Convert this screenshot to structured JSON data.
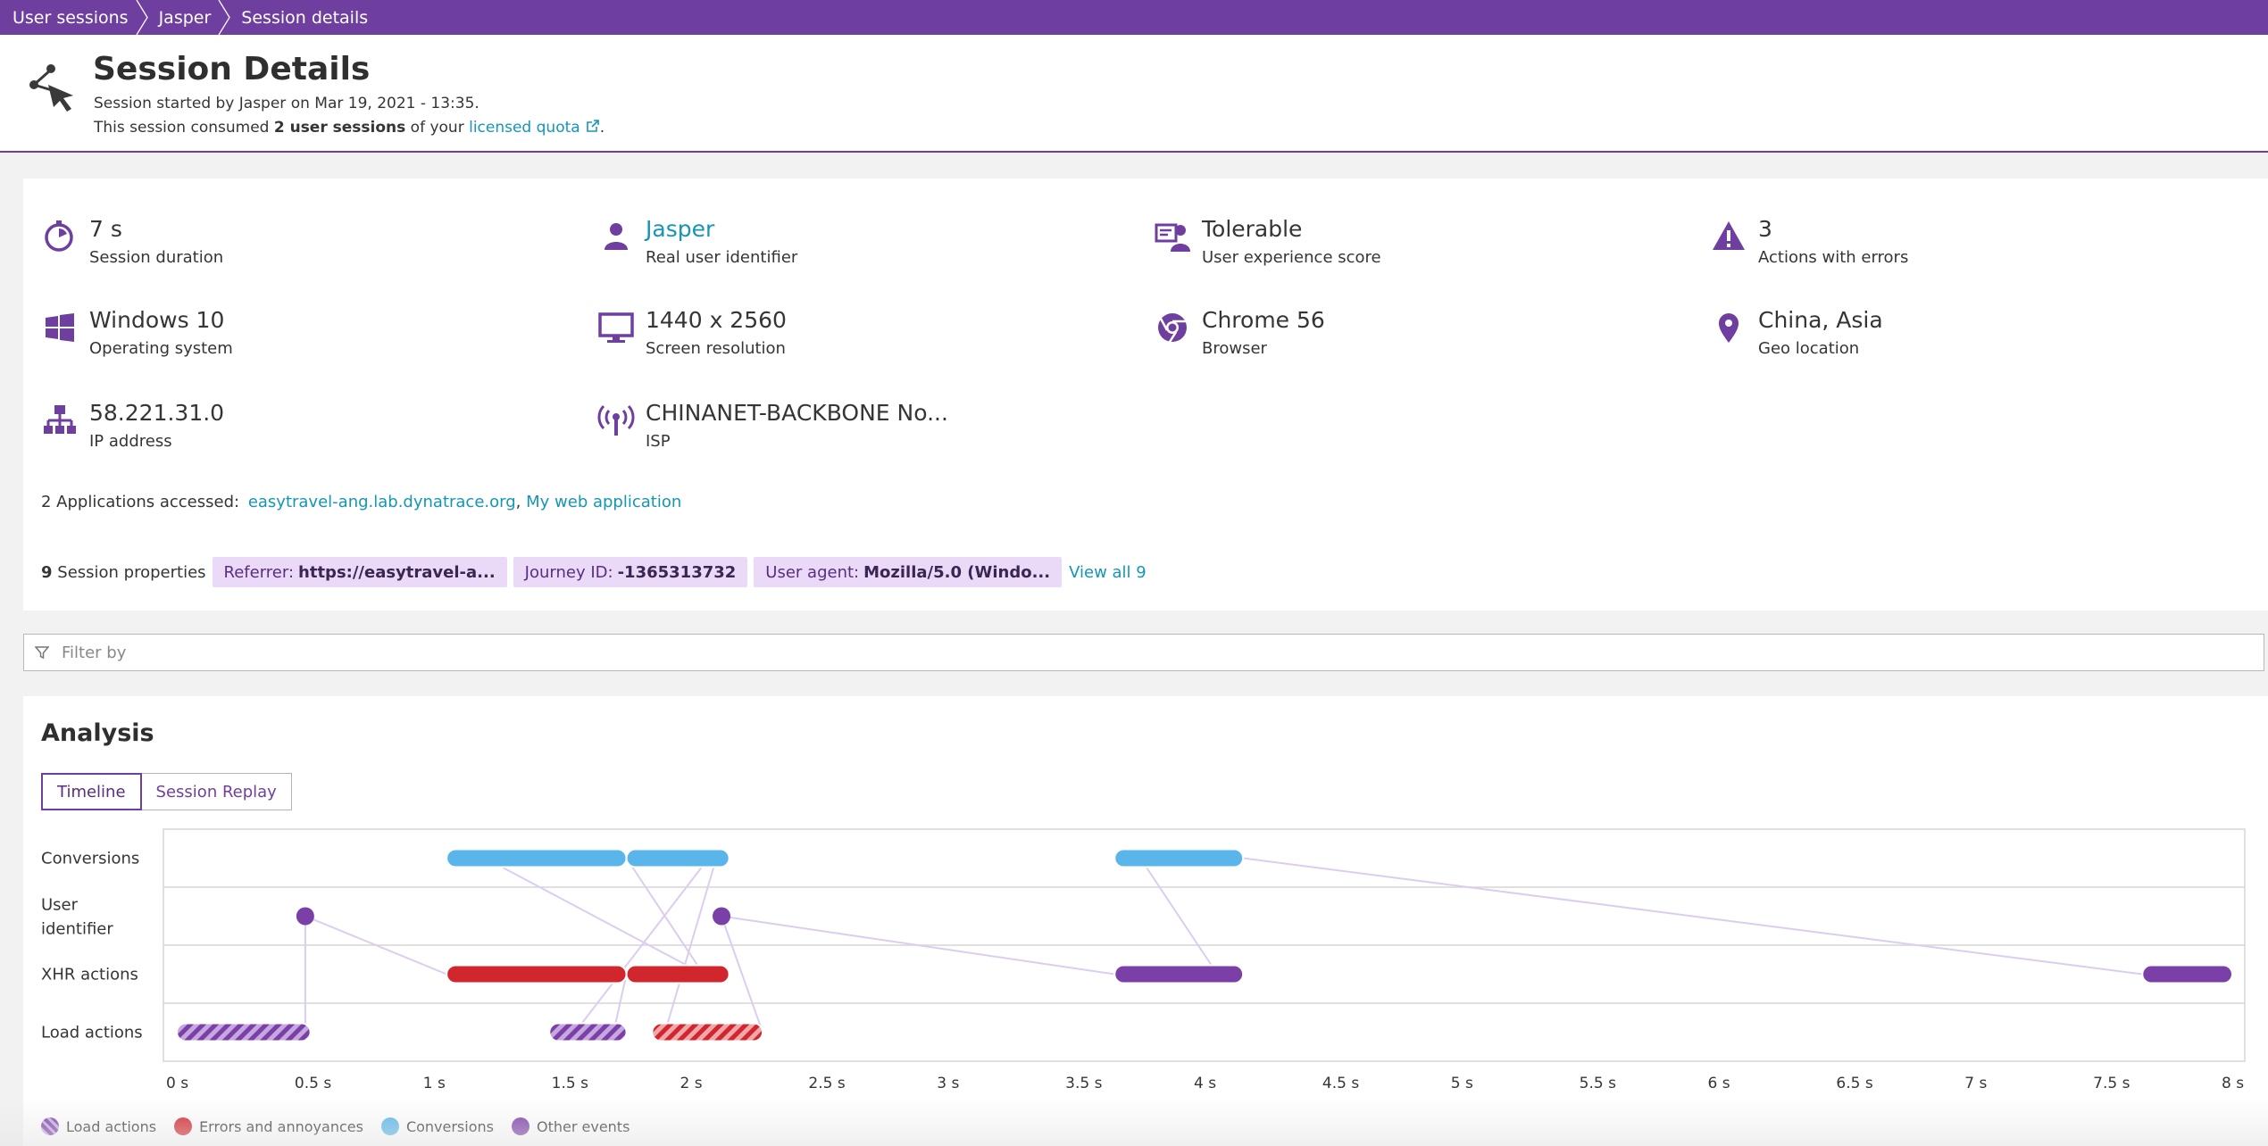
{
  "breadcrumb": [
    {
      "label": "User sessions"
    },
    {
      "label": "Jasper"
    },
    {
      "label": "Session details"
    }
  ],
  "header": {
    "title": "Session Details",
    "started_text": "Session started by Jasper on Mar 19, 2021 - 13:35.",
    "consumed_prefix": "This session consumed ",
    "consumed_bold": "2 user sessions",
    "consumed_middle": " of your ",
    "quota_link": "licensed quota",
    "consumed_suffix": "."
  },
  "stats": [
    {
      "icon": "stopwatch-icon",
      "value": "7 s",
      "label": "Session duration"
    },
    {
      "icon": "user-icon",
      "value": "Jasper",
      "label": "Real user identifier"
    },
    {
      "icon": "user-experience-icon",
      "value": "Tolerable",
      "label": "User experience score"
    },
    {
      "icon": "warning-icon",
      "value": "3",
      "label": "Actions with errors"
    },
    {
      "icon": "windows-icon",
      "value": "Windows 10",
      "label": "Operating system"
    },
    {
      "icon": "monitor-icon",
      "value": "1440 x 2560",
      "label": "Screen resolution"
    },
    {
      "icon": "chrome-icon",
      "value": "Chrome 56",
      "label": "Browser"
    },
    {
      "icon": "location-pin-icon",
      "value": "China, Asia",
      "label": "Geo location"
    },
    {
      "icon": "network-icon",
      "value": "58.221.31.0",
      "label": "IP address"
    },
    {
      "icon": "antenna-icon",
      "value": "CHINANET-BACKBONE No...",
      "label": "ISP"
    }
  ],
  "applications": {
    "prefix": "2 Applications accessed:",
    "app1": "easytravel-ang.lab.dynatrace.org",
    "separator": ",",
    "app2": "My web application"
  },
  "properties": {
    "count": "9",
    "label": "Session properties",
    "tags": [
      {
        "key": "Referrer:",
        "value": "https://easytravel-a..."
      },
      {
        "key": "Journey ID:",
        "value": "-1365313732"
      },
      {
        "key": "User agent:",
        "value": "Mozilla/5.0 (Windo..."
      }
    ],
    "view_all": "View all 9"
  },
  "filter": {
    "placeholder": "Filter by"
  },
  "analysis": {
    "title": "Analysis",
    "tabs": [
      "Timeline",
      "Session Replay"
    ],
    "active_tab": "Timeline"
  },
  "colors": {
    "purple": "#6f3fa0",
    "event_purple": "#7b3fa8",
    "error_red": "#d2262e",
    "conversion_blue": "#5ab6ea",
    "link": "#1496b7"
  },
  "chart_data": {
    "type": "timeline",
    "x_unit": "s",
    "xlim": [
      0,
      8
    ],
    "ticks": [
      "0 s",
      "0.5 s",
      "1 s",
      "1.5 s",
      "2 s",
      "2.5 s",
      "3 s",
      "3.5 s",
      "4 s",
      "4.5 s",
      "5 s",
      "5.5 s",
      "6 s",
      "6.5 s",
      "7 s",
      "7.5 s",
      "8 s"
    ],
    "rows": [
      "Conversions",
      "User\nidentifier",
      "XHR actions",
      "Load actions"
    ],
    "events": [
      {
        "row": 0,
        "start": 1.05,
        "end": 1.75,
        "kind": "conversion"
      },
      {
        "row": 0,
        "start": 1.75,
        "end": 2.15,
        "kind": "conversion"
      },
      {
        "row": 0,
        "start": 3.65,
        "end": 4.15,
        "kind": "conversion"
      },
      {
        "row": 1,
        "at": 0.5,
        "kind": "other"
      },
      {
        "row": 1,
        "at": 2.12,
        "kind": "other"
      },
      {
        "row": 2,
        "start": 1.05,
        "end": 1.75,
        "kind": "error"
      },
      {
        "row": 2,
        "start": 1.75,
        "end": 2.15,
        "kind": "error"
      },
      {
        "row": 2,
        "start": 3.65,
        "end": 4.15,
        "kind": "other"
      },
      {
        "row": 2,
        "start": 7.65,
        "end": 8.0,
        "kind": "other"
      },
      {
        "row": 3,
        "start": 0.0,
        "end": 0.52,
        "kind": "load"
      },
      {
        "row": 3,
        "start": 1.45,
        "end": 1.75,
        "kind": "load"
      },
      {
        "row": 3,
        "start": 1.85,
        "end": 2.28,
        "kind": "load-error"
      }
    ],
    "legend": [
      {
        "label": "Load actions",
        "kind": "load"
      },
      {
        "label": "Errors and annoyances",
        "kind": "error"
      },
      {
        "label": "Conversions",
        "kind": "conversion"
      },
      {
        "label": "Other events",
        "kind": "other"
      }
    ]
  }
}
